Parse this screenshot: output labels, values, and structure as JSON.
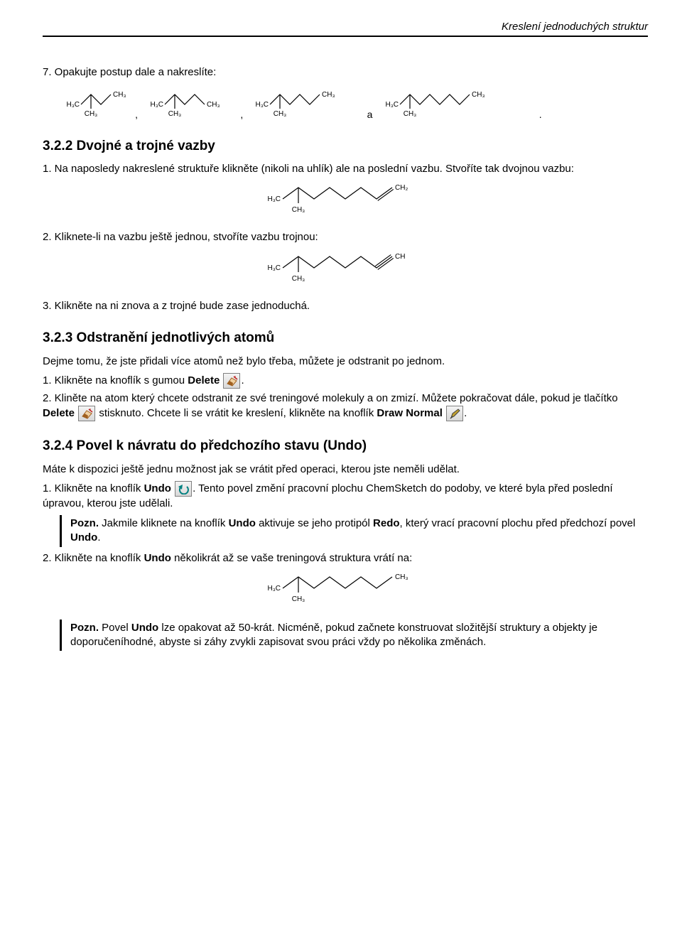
{
  "header": {
    "title": "Kreslení jednoduchých struktur"
  },
  "step7": {
    "text": "7.  Opakujte postup dale a nakreslíte:",
    "sep_comma": ",",
    "sep_a": "a",
    "sep_dot": "."
  },
  "s322": {
    "heading": "3.2.2  Dvojné a trojné vazby",
    "p1": "1.  Na naposledy nakreslené struktuře klikněte (nikoli na uhlík) ale na poslední vazbu. Stvoříte tak dvojnou vazbu:",
    "p2": "2.  Kliknete-li na vazbu ještě jednou, stvoříte vazbu trojnou:",
    "p3": "3.  Klikněte na ni znova a z trojné bude zase jednoduchá."
  },
  "s323": {
    "heading": "3.2.3  Odstranění jednotlivých atomů",
    "intro": "Dejme tomu, že jste přidali více atomů než bylo třeba, můžete je odstranit po jednom.",
    "p1_a": "1.  Klikněte na knoflík s gumou ",
    "p1_b": "Delete",
    "p1_c": " ",
    "p1_d": ".",
    "p2_a": "2.  Kliněte na atom který chcete odstranit ze své treningové molekuly a on zmizí. Můžete pokračovat dále, pokud je tlačítko ",
    "p2_b": "Delete",
    "p2_c": " ",
    "p2_d": " stisknuto. Chcete li se vrátit ke kreslení, klikněte na knoflík ",
    "p2_e": "Draw Normal",
    "p2_f": " ",
    "p2_g": "."
  },
  "s324": {
    "heading": "3.2.4  Povel k návratu do předchozího stavu (Undo)",
    "intro": "Máte k dispozici ještě jednu možnost jak se vrátit před operaci, kterou jste neměli udělat.",
    "p1_a": "1.  Klikněte na knoflík ",
    "p1_b": "Undo",
    "p1_c": " ",
    "p1_d": ".  Tento povel změní pracovní plochu ChemSketch do podoby, ve které byla před poslední úpravou, kterou jste udělali.",
    "note1_label": "Pozn.",
    "note1_a": "  Jakmile kliknete na knoflík ",
    "note1_b": "Undo",
    "note1_c": " aktivuje se jeho protipól ",
    "note1_d": "Redo",
    "note1_e": ", který vrací pracovní plochu před předchozí povel ",
    "note1_f": "Undo",
    "note1_g": ".",
    "p2_a": "2.  Klikněte na knoflík ",
    "p2_b": "Undo",
    "p2_c": " několikrát až se vaše treningová struktura vrátí na:",
    "note2_label": "Pozn.",
    "note2_a": "  Povel ",
    "note2_b": "Undo",
    "note2_c": " lze opakovat až 50-krát.  Nicméně, pokud začnete konstruovat složitější struktury a objekty je doporučeníhodné, abyste si záhy zvykli zapisovat svou práci vždy po několika změnách."
  },
  "chem": {
    "label_h3c": "H₃C",
    "label_ch3": "CH₃",
    "label_ch2": "CH₂",
    "label_ch": "CH",
    "stroke": "#000000",
    "stroke_width": 1.2,
    "font_size": 10,
    "mol1_peaks": 3,
    "mol2_peaks": 4,
    "mol3_peaks": 5,
    "mol4_peaks": 7,
    "long_peaks": 7
  },
  "icons": {
    "delete_color": "#a06020",
    "delete_accent": "#c02020",
    "pencil_color": "#404040",
    "pencil_tip": "#c0a030",
    "undo_color": "#008080"
  }
}
